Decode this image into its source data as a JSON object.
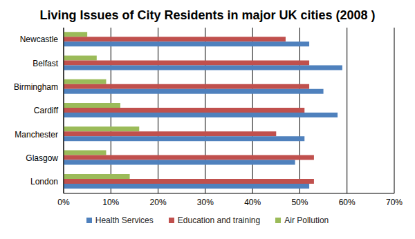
{
  "chart_data": {
    "type": "bar",
    "title": "Living Issues of City Residents in major UK cities (2008 )",
    "orientation": "horizontal",
    "categories": [
      "Newcastle",
      "Belfast",
      "Birmingham",
      "Cardiff",
      "Manchester",
      "Glasgow",
      "London"
    ],
    "series": [
      {
        "name": "Health Services",
        "color": "#4f81bd",
        "values": [
          52,
          59,
          55,
          58,
          51,
          49,
          52
        ]
      },
      {
        "name": "Education and training",
        "color": "#c0504d",
        "values": [
          47,
          52,
          52,
          51,
          45,
          53,
          53
        ]
      },
      {
        "name": "Air Pollution",
        "color": "#9bbb59",
        "values": [
          5,
          7,
          9,
          12,
          16,
          9,
          14
        ]
      }
    ],
    "xlim": [
      0,
      70
    ],
    "xticks": [
      {
        "value": 0,
        "label": "0%"
      },
      {
        "value": 10,
        "label": "10%"
      },
      {
        "value": 20,
        "label": "20%"
      },
      {
        "value": 30,
        "label": "30%"
      },
      {
        "value": 40,
        "label": "40%"
      },
      {
        "value": 50,
        "label": "50%"
      },
      {
        "value": 60,
        "label": "60%"
      },
      {
        "value": 70,
        "label": "70%"
      }
    ],
    "grid": true,
    "legend": "bottom"
  }
}
